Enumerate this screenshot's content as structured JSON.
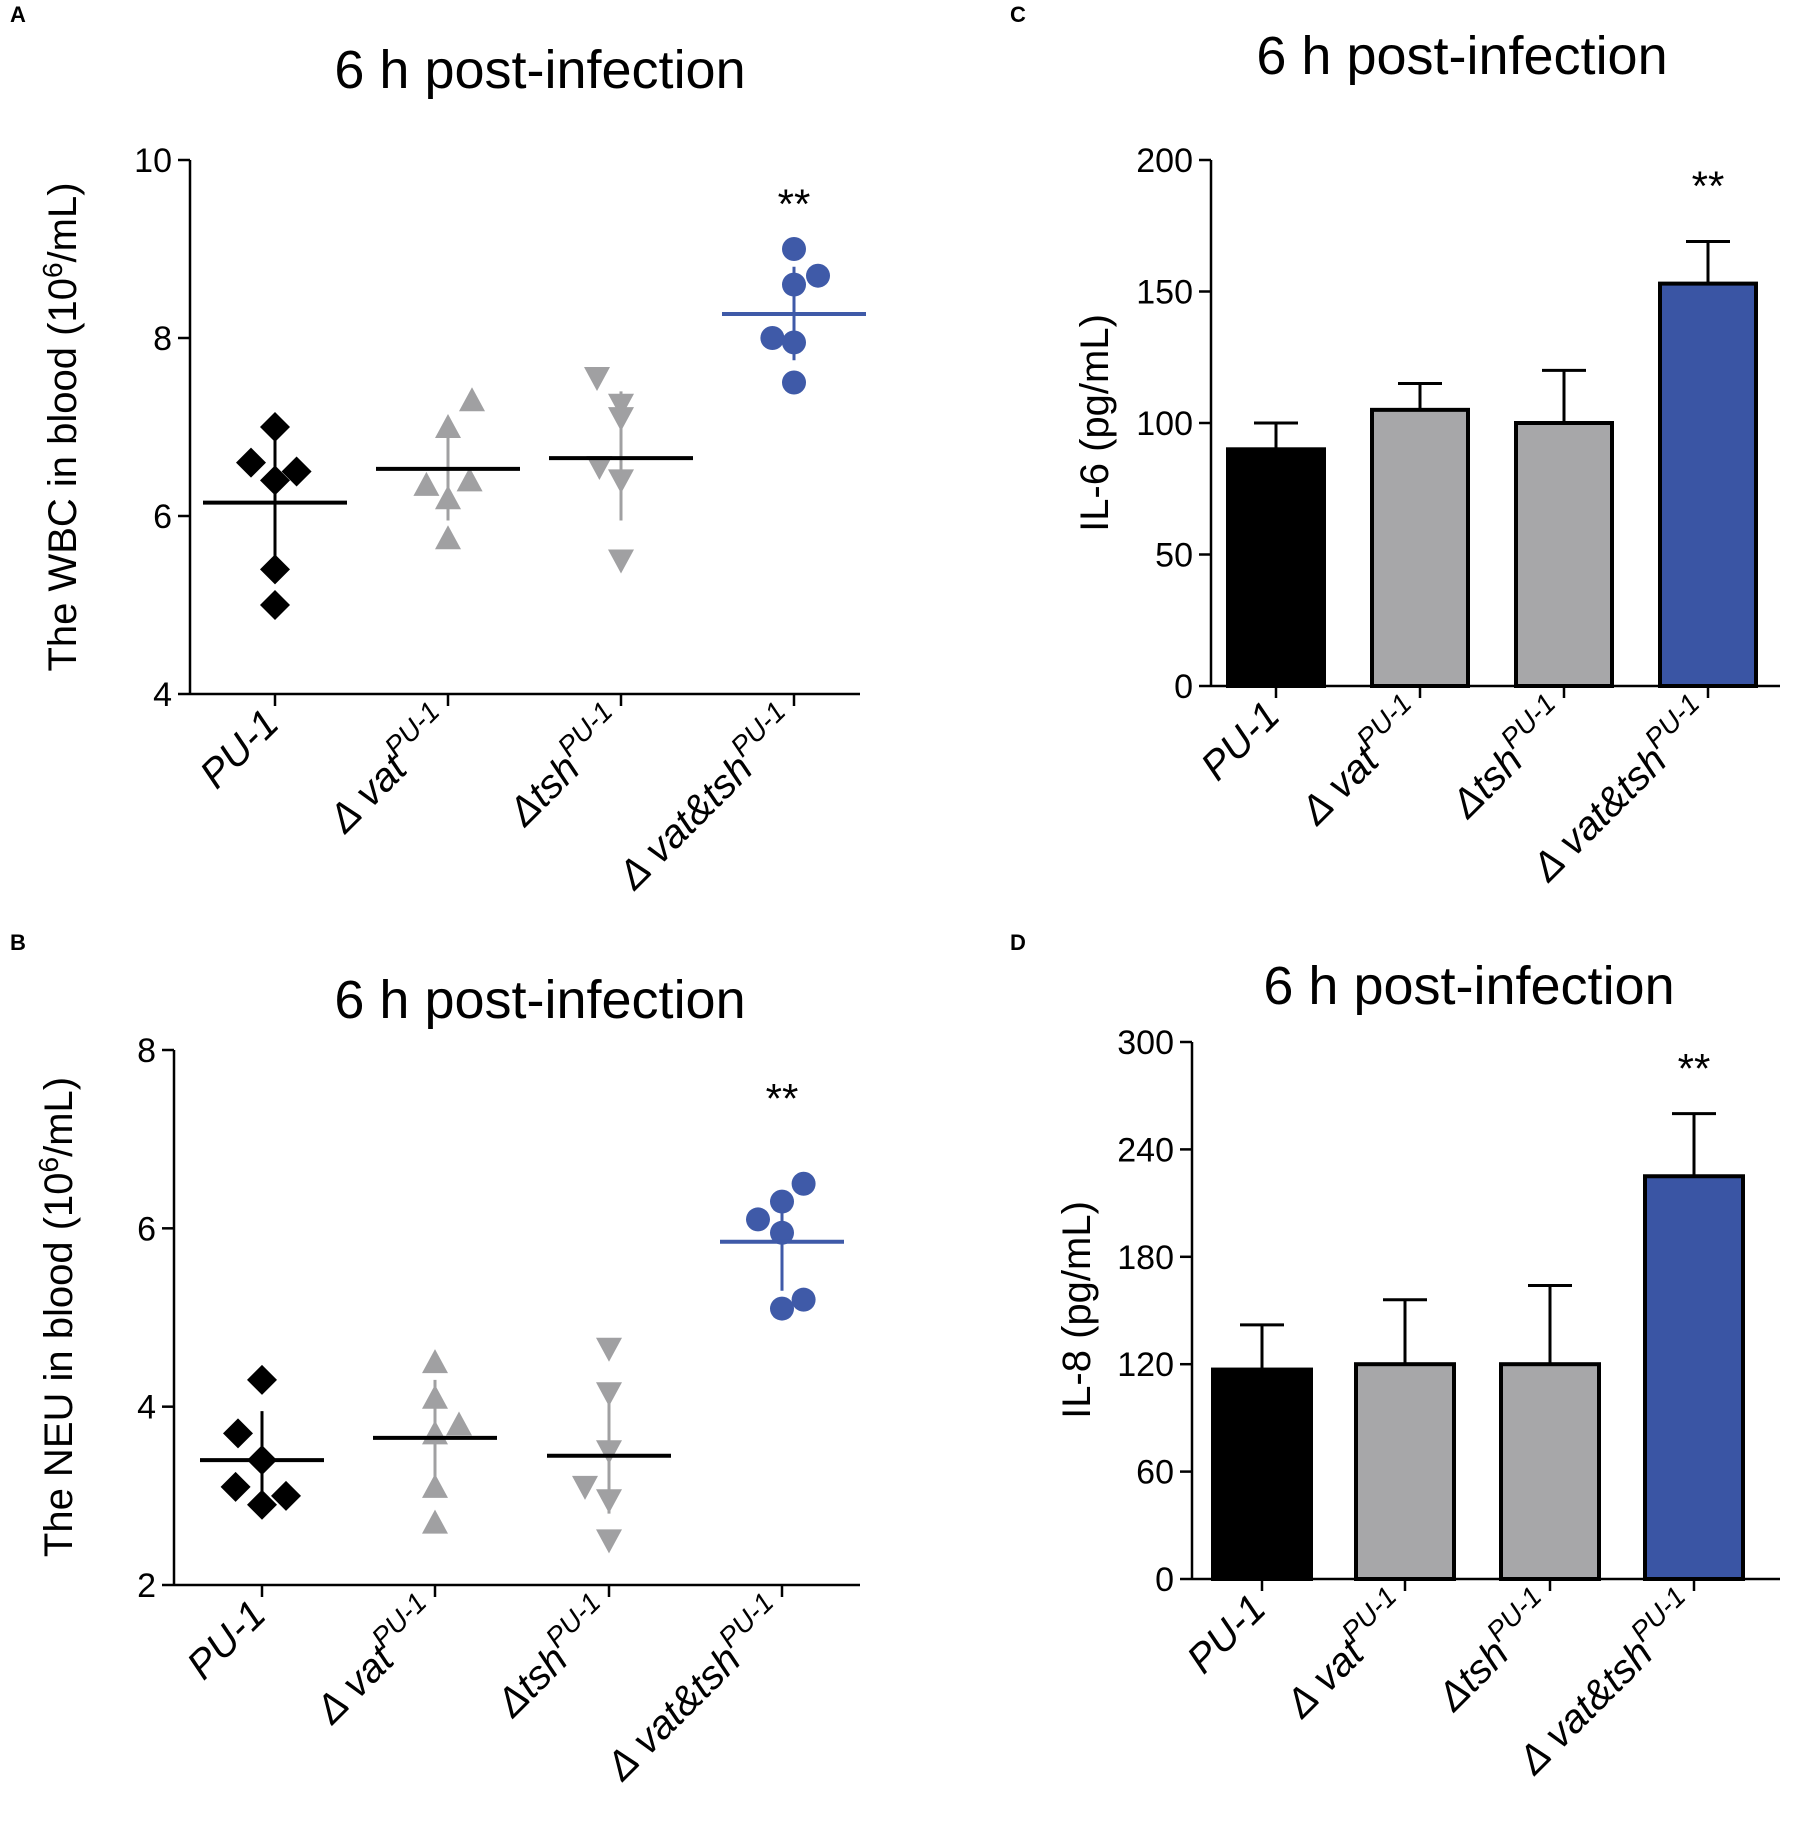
{
  "figure": {
    "delta_symbol": "Δ"
  },
  "colors": {
    "black": "#000000",
    "gray": "#a0a0a2",
    "blue": "#3f5aa8",
    "bar_gray": "#a7a7a9",
    "bar_blue": "#3a55a4"
  },
  "chart_data": [
    {
      "panel": "A",
      "type": "scatter",
      "title": "6 h post-infection",
      "ylabel": "The WBC in blood (10^6/mL)",
      "ylabel_parts": {
        "pre": "The WBC in blood (10",
        "sup": "6",
        "post": "/mL)"
      },
      "ylim": [
        4,
        10
      ],
      "yticks": [
        4,
        6,
        8,
        10
      ],
      "categories": [
        {
          "base": "PU-1",
          "sup": "",
          "delta": false
        },
        {
          "base": "vat",
          "sup": "PU-1",
          "delta": true,
          "space": true
        },
        {
          "base": "tsh",
          "sup": "PU-1",
          "delta": true,
          "space": false
        },
        {
          "base": "vat&tsh",
          "sup": "PU-1",
          "delta": true,
          "space": true
        }
      ],
      "series": [
        {
          "name": "PU-1",
          "marker": "diamond",
          "color": "black",
          "points": [
            [
              0,
              7.0
            ],
            [
              -0.2,
              6.6
            ],
            [
              0,
              6.4
            ],
            [
              0.18,
              6.5
            ],
            [
              0,
              5.4
            ],
            [
              0,
              5.0
            ]
          ],
          "mean": 6.15,
          "sd": [
            5.3,
            6.95
          ]
        },
        {
          "name": "Δvat PU-1",
          "marker": "triangle-up",
          "color": "gray",
          "points": [
            [
              -0.18,
              6.35
            ],
            [
              0,
              7.0
            ],
            [
              0.2,
              7.3
            ],
            [
              0.18,
              6.4
            ],
            [
              0,
              6.2
            ],
            [
              0,
              5.75
            ]
          ],
          "mean": 6.53,
          "sd": [
            5.95,
            7.1
          ]
        },
        {
          "name": "Δtsh PU-1",
          "marker": "triangle-down",
          "color": "gray",
          "points": [
            [
              -0.2,
              7.55
            ],
            [
              0,
              7.25
            ],
            [
              0,
              7.1
            ],
            [
              -0.18,
              6.55
            ],
            [
              0,
              6.4
            ],
            [
              0,
              5.5
            ]
          ],
          "mean": 6.65,
          "sd": [
            5.95,
            7.4
          ]
        },
        {
          "name": "Δvat&tsh PU-1",
          "marker": "circle",
          "color": "blue",
          "points": [
            [
              0,
              9.0
            ],
            [
              0,
              8.6
            ],
            [
              0.2,
              8.7
            ],
            [
              -0.18,
              8.0
            ],
            [
              0,
              7.95
            ],
            [
              0,
              7.5
            ]
          ],
          "mean": 8.27,
          "sd": [
            7.75,
            8.8
          ]
        }
      ],
      "annotations": [
        {
          "category": 3,
          "text": "**",
          "y": 9.5
        }
      ]
    },
    {
      "panel": "B",
      "type": "scatter",
      "title": "6 h post-infection",
      "ylabel": "The NEU in blood (10^6/mL)",
      "ylabel_parts": {
        "pre": "The NEU in blood (10",
        "sup": "6",
        "post": "/mL)"
      },
      "ylim": [
        2,
        8
      ],
      "yticks": [
        2,
        4,
        6,
        8
      ],
      "categories": [
        {
          "base": "PU-1",
          "sup": "",
          "delta": false
        },
        {
          "base": "vat",
          "sup": "PU-1",
          "delta": true,
          "space": true
        },
        {
          "base": "tsh",
          "sup": "PU-1",
          "delta": true,
          "space": false
        },
        {
          "base": "vat&tsh",
          "sup": "PU-1",
          "delta": true,
          "space": true
        }
      ],
      "series": [
        {
          "name": "PU-1",
          "marker": "diamond",
          "color": "black",
          "points": [
            [
              0,
              4.3
            ],
            [
              -0.2,
              3.7
            ],
            [
              0,
              3.4
            ],
            [
              -0.22,
              3.1
            ],
            [
              0.2,
              3.0
            ],
            [
              0,
              2.9
            ]
          ],
          "mean": 3.4,
          "sd": [
            2.9,
            3.95
          ]
        },
        {
          "name": "Δvat PU-1",
          "marker": "triangle-up",
          "color": "gray",
          "points": [
            [
              0,
              4.5
            ],
            [
              0,
              4.1
            ],
            [
              0.2,
              3.8
            ],
            [
              0,
              3.7
            ],
            [
              0,
              3.1
            ],
            [
              0,
              2.7
            ]
          ],
          "mean": 3.65,
          "sd": [
            3.0,
            4.3
          ]
        },
        {
          "name": "Δtsh PU-1",
          "marker": "triangle-down",
          "color": "gray",
          "points": [
            [
              0,
              4.65
            ],
            [
              0,
              4.15
            ],
            [
              0,
              3.5
            ],
            [
              -0.2,
              3.1
            ],
            [
              0,
              2.95
            ],
            [
              0,
              2.5
            ]
          ],
          "mean": 3.45,
          "sd": [
            2.8,
            4.1
          ]
        },
        {
          "name": "Δvat&tsh PU-1",
          "marker": "circle",
          "color": "blue",
          "points": [
            [
              0.18,
              6.5
            ],
            [
              0,
              6.3
            ],
            [
              -0.2,
              6.1
            ],
            [
              0,
              5.95
            ],
            [
              0.18,
              5.2
            ],
            [
              0,
              5.1
            ]
          ],
          "mean": 5.85,
          "sd": [
            5.3,
            6.4
          ]
        }
      ],
      "annotations": [
        {
          "category": 3,
          "text": "**",
          "y": 7.45
        }
      ]
    },
    {
      "panel": "C",
      "type": "bar",
      "title": "6 h post-infection",
      "ylabel": "IL-6 (pg/mL)",
      "ylim": [
        0,
        200
      ],
      "yticks": [
        0,
        50,
        100,
        150,
        200
      ],
      "categories": [
        {
          "base": "PU-1",
          "sup": "",
          "delta": false
        },
        {
          "base": "vat",
          "sup": "PU-1",
          "delta": true,
          "space": true
        },
        {
          "base": "tsh",
          "sup": "PU-1",
          "delta": true,
          "space": false
        },
        {
          "base": "vat&tsh",
          "sup": "PU-1",
          "delta": true,
          "space": true
        }
      ],
      "values": [
        90,
        105,
        100,
        153
      ],
      "errors": [
        10,
        10,
        20,
        16
      ],
      "bar_colors": [
        "black",
        "bar_gray",
        "bar_gray",
        "bar_blue"
      ],
      "annotations": [
        {
          "category": 3,
          "text": "**",
          "y": 190
        }
      ]
    },
    {
      "panel": "D",
      "type": "bar",
      "title": "6 h post-infection",
      "ylabel": "IL-8 (pg/mL)",
      "ylim": [
        0,
        300
      ],
      "yticks": [
        0,
        60,
        120,
        180,
        240,
        300
      ],
      "categories": [
        {
          "base": "PU-1",
          "sup": "",
          "delta": false
        },
        {
          "base": "vat",
          "sup": "PU-1",
          "delta": true,
          "space": true
        },
        {
          "base": "tsh",
          "sup": "PU-1",
          "delta": true,
          "space": false
        },
        {
          "base": "vat&tsh",
          "sup": "PU-1",
          "delta": true,
          "space": true
        }
      ],
      "values": [
        117,
        120,
        120,
        225
      ],
      "errors": [
        25,
        36,
        44,
        35
      ],
      "bar_colors": [
        "black",
        "bar_gray",
        "bar_gray",
        "bar_blue"
      ],
      "annotations": [
        {
          "category": 3,
          "text": "**",
          "y": 285
        }
      ]
    }
  ]
}
